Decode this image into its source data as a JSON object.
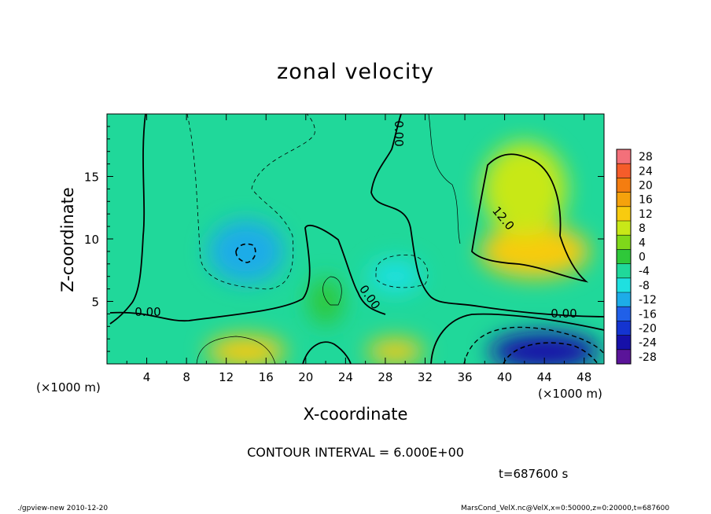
{
  "chart_data": {
    "type": "heatmap",
    "title": "zonal velocity",
    "xlabel": "X-coordinate",
    "ylabel": "Z-coordinate",
    "x_unit": "(×1000 m)",
    "xlim": [
      0,
      50
    ],
    "ylim": [
      0,
      20
    ],
    "x_ticks": [
      4,
      8,
      12,
      16,
      20,
      24,
      28,
      32,
      36,
      40,
      44,
      48
    ],
    "y_ticks": [
      5,
      10,
      15
    ],
    "colorbar": {
      "levels": [
        28,
        24,
        20,
        16,
        12,
        8,
        4,
        0,
        -4,
        -8,
        -12,
        -16,
        -20,
        -24,
        -28
      ],
      "colors": [
        "#f3707a",
        "#f55c2a",
        "#f47d10",
        "#f5a20c",
        "#f8cb0f",
        "#c8e818",
        "#7fd81a",
        "#2fc83a",
        "#20d89a",
        "#1fe0e0",
        "#1dace8",
        "#2060e8",
        "#1434d0",
        "#1610a8",
        "#5a1499"
      ]
    },
    "contour_labels": [
      "0.00",
      "0.00",
      "0.00",
      "0.00",
      "12.0"
    ],
    "contour_interval": "CONTOUR INTERVAL = 6.000E+00",
    "time_label": "t=687600 s",
    "footer_left": "./gpview-new  2010-12-20",
    "footer_right": "MarsCond_VelX.nc@VelX,x=0:50000,z=0:20000,t=687600",
    "features": [
      {
        "x": 14,
        "z": 9,
        "value": -9
      },
      {
        "x": 29,
        "z": 7,
        "value": -8
      },
      {
        "x": 43,
        "z": 9,
        "value": 14
      },
      {
        "x": 42,
        "z": 14,
        "value": 11
      },
      {
        "x": 44,
        "z": 1,
        "value": -22
      },
      {
        "x": 14,
        "z": 1,
        "value": 12
      },
      {
        "x": 29,
        "z": 1,
        "value": 12
      },
      {
        "x": 22,
        "z": 5,
        "value": 3
      }
    ]
  }
}
